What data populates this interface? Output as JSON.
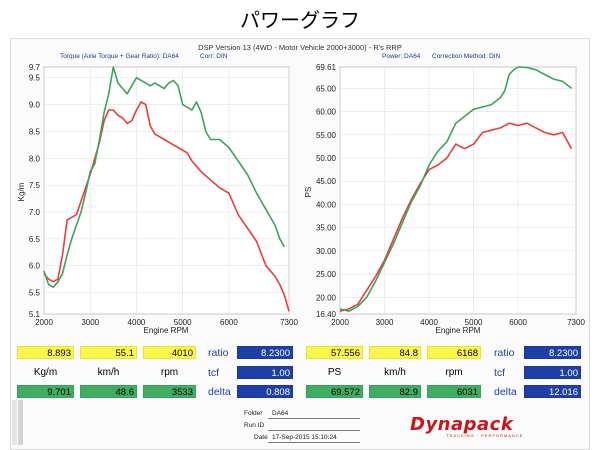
{
  "page_title": "パワーグラフ",
  "report_title": "DSP Version 13 (4WD - Motor Vehicle 2000+3000) - R's  RRP",
  "left_panel": {
    "header_main": "Torque (Axle Torque + Gear Ratio): DA64",
    "header_corr": "Corr: DIN"
  },
  "right_panel": {
    "header_main": "Power: DA64",
    "header_corr": "Correction Method: DIN"
  },
  "colors": {
    "red": "#ef3b3b",
    "green": "#3ea35a",
    "yellow": "#fbf64a",
    "cell_green": "#3fae62",
    "cell_blue": "#1f3fa8"
  },
  "chart_data": [
    {
      "type": "line",
      "xlabel": "Engine RPM",
      "ylabel": "Kg/m",
      "xlim": [
        2000,
        7300
      ],
      "ylim": [
        5.1,
        9.7
      ],
      "x_ticks": [
        "2000",
        "3000",
        "4000",
        "5000",
        "6000",
        "7300"
      ],
      "x_tick_values": [
        2000,
        3000,
        4000,
        5000,
        6000,
        7300
      ],
      "y_ticks": [
        "9.7",
        "9.5",
        "9.0",
        "8.5",
        "8.0",
        "7.5",
        "7.0",
        "6.5",
        "6.0",
        "5.5",
        "5.1"
      ],
      "y_tick_values": [
        9.7,
        9.5,
        9.0,
        8.5,
        8.0,
        7.5,
        7.0,
        6.5,
        6.0,
        5.5,
        5.1
      ],
      "series": [
        {
          "color": "#ef3b3b",
          "x": [
            2000,
            2100,
            2200,
            2300,
            2400,
            2500,
            2600,
            2700,
            2800,
            2900,
            3000,
            3100,
            3200,
            3300,
            3400,
            3500,
            3600,
            3700,
            3800,
            3900,
            4000,
            4100,
            4200,
            4300,
            4400,
            4500,
            4600,
            4700,
            4800,
            4900,
            5000,
            5100,
            5200,
            5400,
            5600,
            5800,
            6000,
            6200,
            6400,
            6600,
            6800,
            7000,
            7100,
            7200,
            7300
          ],
          "values": [
            5.85,
            5.75,
            5.7,
            5.75,
            6.2,
            6.85,
            6.9,
            6.95,
            7.2,
            7.45,
            7.7,
            8.0,
            8.3,
            8.7,
            8.9,
            8.9,
            8.8,
            8.75,
            8.65,
            8.7,
            8.9,
            9.05,
            9.0,
            8.6,
            8.45,
            8.4,
            8.35,
            8.3,
            8.25,
            8.2,
            8.15,
            8.1,
            7.95,
            7.75,
            7.6,
            7.45,
            7.35,
            6.95,
            6.7,
            6.45,
            6.0,
            5.8,
            5.65,
            5.45,
            5.15
          ]
        },
        {
          "color": "#3ea35a",
          "x": [
            2000,
            2100,
            2200,
            2300,
            2400,
            2500,
            2600,
            2700,
            2800,
            2900,
            3000,
            3100,
            3200,
            3300,
            3400,
            3500,
            3600,
            3700,
            3800,
            3900,
            4000,
            4100,
            4200,
            4300,
            4400,
            4500,
            4600,
            4700,
            4800,
            4900,
            5000,
            5100,
            5200,
            5300,
            5400,
            5500,
            5600,
            5800,
            6000,
            6200,
            6400,
            6600,
            6800,
            7000,
            7100,
            7200
          ],
          "values": [
            5.9,
            5.65,
            5.6,
            5.7,
            5.85,
            6.2,
            6.5,
            6.75,
            7.0,
            7.35,
            7.75,
            7.9,
            8.35,
            8.85,
            9.2,
            9.7,
            9.4,
            9.3,
            9.2,
            9.35,
            9.5,
            9.45,
            9.4,
            9.35,
            9.4,
            9.35,
            9.3,
            9.4,
            9.45,
            9.35,
            9.0,
            8.95,
            8.9,
            9.05,
            8.85,
            8.5,
            8.35,
            8.35,
            8.2,
            7.95,
            7.7,
            7.35,
            7.05,
            6.75,
            6.5,
            6.35
          ]
        }
      ]
    },
    {
      "type": "line",
      "xlabel": "Engine RPM",
      "ylabel": "PS",
      "xlim": [
        2000,
        7300
      ],
      "ylim": [
        16.4,
        69.61
      ],
      "x_ticks": [
        "2000",
        "3000",
        "4000",
        "5000",
        "6000",
        "7300"
      ],
      "x_tick_values": [
        2000,
        3000,
        4000,
        5000,
        6000,
        7300
      ],
      "y_ticks": [
        "69.61",
        "65.00",
        "60.00",
        "55.00",
        "50.00",
        "45.00",
        "40.00",
        "35.00",
        "30.00",
        "25.00",
        "20.00",
        "16.40"
      ],
      "y_tick_values": [
        69.61,
        65.0,
        60.0,
        55.0,
        50.0,
        45.0,
        40.0,
        35.0,
        30.0,
        25.0,
        20.0,
        16.4
      ],
      "series": [
        {
          "color": "#ef3b3b",
          "x": [
            2000,
            2200,
            2400,
            2600,
            2800,
            3000,
            3200,
            3400,
            3600,
            3800,
            4000,
            4200,
            4400,
            4500,
            4600,
            4700,
            4800,
            5000,
            5200,
            5400,
            5600,
            5800,
            6000,
            6200,
            6400,
            6600,
            6800,
            7000,
            7200
          ],
          "values": [
            17.0,
            17.5,
            18.5,
            21.5,
            24.5,
            28.0,
            32.5,
            37.0,
            41.0,
            44.5,
            47.5,
            48.5,
            50.0,
            51.5,
            53.0,
            52.5,
            52.0,
            53.0,
            55.5,
            56.0,
            56.5,
            57.5,
            57.0,
            57.5,
            56.5,
            55.5,
            55.0,
            55.5,
            52.0
          ]
        },
        {
          "color": "#3ea35a",
          "x": [
            2000,
            2200,
            2400,
            2600,
            2800,
            3000,
            3200,
            3400,
            3600,
            3800,
            4000,
            4200,
            4400,
            4500,
            4600,
            4800,
            5000,
            5200,
            5400,
            5600,
            5700,
            5800,
            5900,
            6000,
            6200,
            6400,
            6600,
            6800,
            7000,
            7200
          ],
          "values": [
            17.5,
            17.0,
            18.0,
            20.0,
            23.5,
            27.5,
            31.5,
            36.0,
            40.5,
            44.0,
            48.5,
            51.5,
            53.5,
            55.5,
            57.5,
            59.0,
            60.5,
            61.0,
            61.5,
            63.0,
            64.5,
            68.0,
            69.0,
            69.6,
            69.5,
            69.0,
            68.0,
            67.0,
            66.5,
            65.0
          ]
        }
      ]
    }
  ],
  "table_left": {
    "row_yellow": [
      "8.893",
      "55.1",
      "4010"
    ],
    "units": [
      "Kg/m",
      "km/h",
      "rpm"
    ],
    "row_green": [
      "9.701",
      "48.6",
      "3533"
    ],
    "params": [
      "ratio",
      "tcf",
      "delta"
    ],
    "param_values": [
      "8.2300",
      "1.00",
      "0.808"
    ]
  },
  "table_right": {
    "row_yellow": [
      "57.556",
      "84.8",
      "6168"
    ],
    "units": [
      "PS",
      "km/h",
      "rpm"
    ],
    "row_green": [
      "69.572",
      "82.9",
      "6031"
    ],
    "params": [
      "ratio",
      "tcf",
      "delta"
    ],
    "param_values": [
      "8.2300",
      "1.00",
      "12.016"
    ]
  },
  "footer": {
    "folder_label": "Folder",
    "folder_value": "DA64",
    "run_label": "Run ID",
    "run_value": "",
    "date_label": "Date",
    "date_value": "17-Sep-2015 15:10:24"
  },
  "logo_text": "Dynapack",
  "logo_subtext": "TRACKING · PERFORMANCE"
}
